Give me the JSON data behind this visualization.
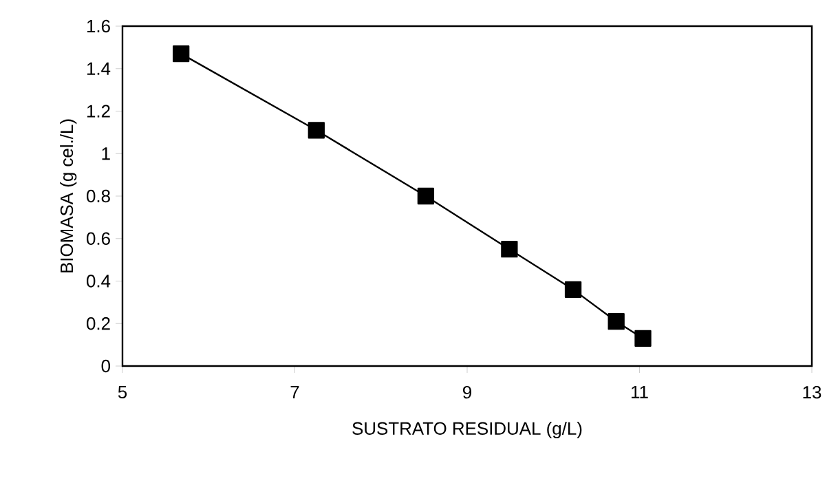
{
  "chart_data": {
    "type": "line",
    "xlabel": "SUSTRATO RESIDUAL (g/L)",
    "ylabel": "BIOMASA (g cel./L)",
    "x": [
      5.68,
      7.25,
      8.52,
      9.49,
      10.23,
      10.73,
      11.04
    ],
    "series": [
      {
        "color": "#000000",
        "values": [
          1.47,
          1.11,
          0.8,
          0.55,
          0.36,
          0.21,
          0.13
        ]
      }
    ],
    "xlim": [
      5,
      13
    ],
    "xticks": [
      5,
      7,
      9,
      11,
      13
    ],
    "ylim": [
      0,
      1.6
    ],
    "yticks": [
      0,
      0.2,
      0.4,
      0.6,
      0.8,
      1,
      1.2,
      1.4,
      1.6
    ],
    "marker": "square",
    "line_style": "solid"
  }
}
